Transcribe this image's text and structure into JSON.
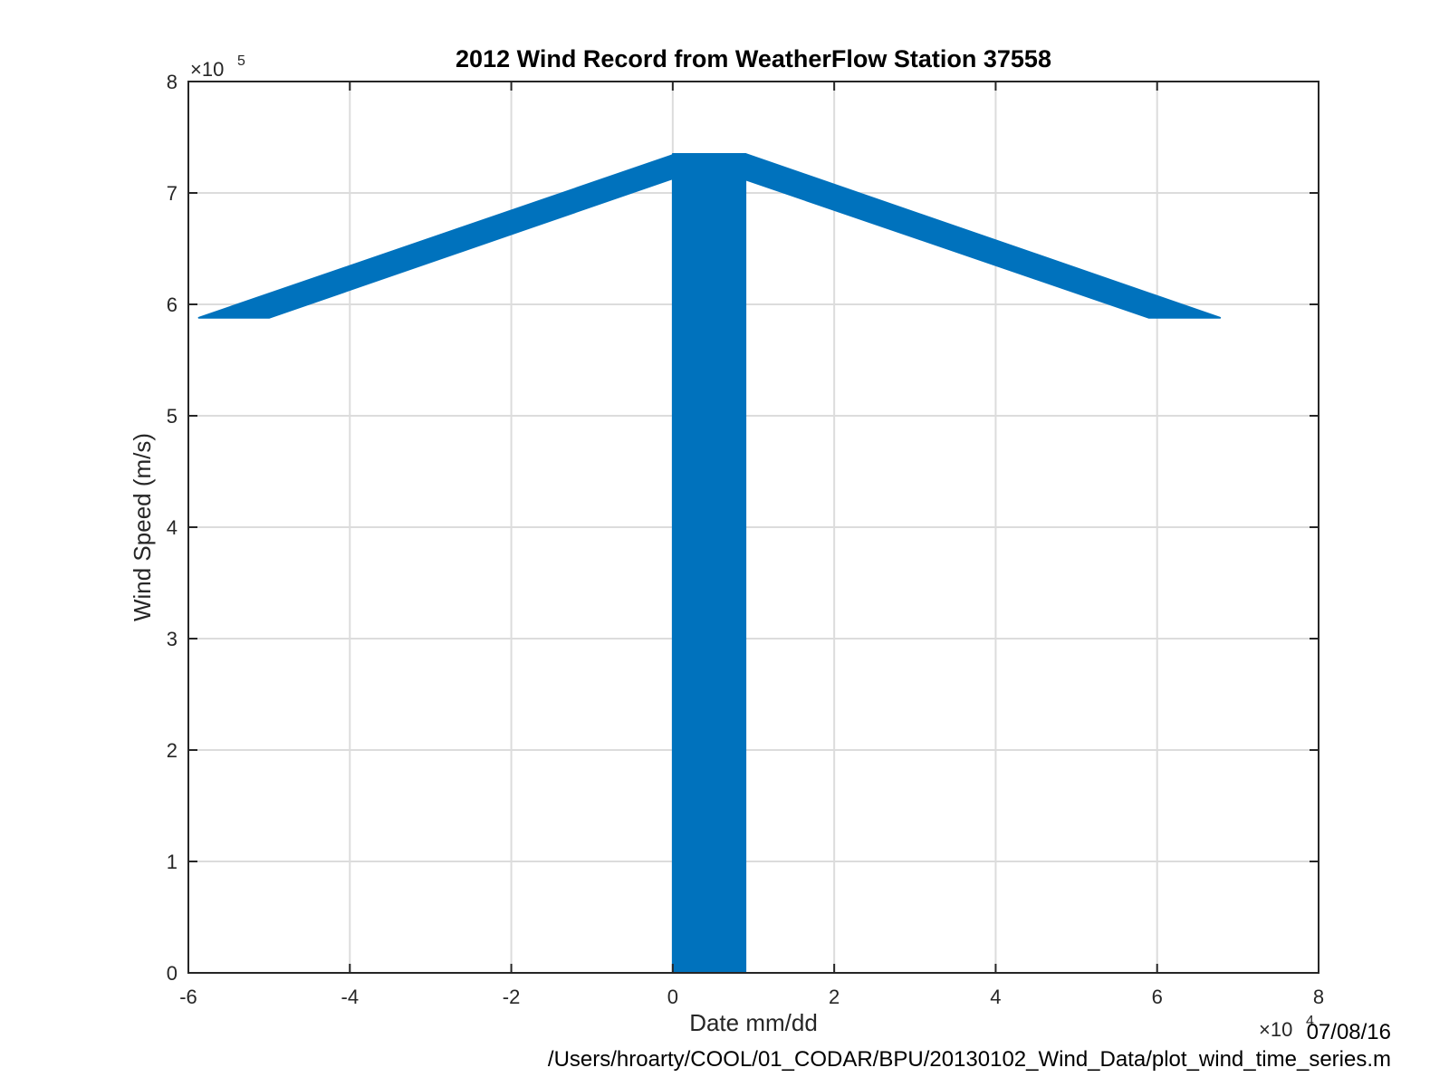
{
  "chart_data": {
    "type": "area",
    "title": "2012 Wind Record from WeatherFlow Station 37558",
    "xlabel": "Date mm/dd",
    "ylabel": "Wind Speed (m/s)",
    "xlim": [
      -60000,
      80000
    ],
    "ylim": [
      0,
      800000
    ],
    "x_ticks": [
      -60000,
      -40000,
      -20000,
      0,
      20000,
      40000,
      60000,
      80000
    ],
    "x_tick_labels": [
      "-6",
      "-4",
      "-2",
      "0",
      "2",
      "4",
      "6",
      "8"
    ],
    "y_ticks": [
      0,
      100000,
      200000,
      300000,
      400000,
      500000,
      600000,
      700000,
      800000
    ],
    "y_tick_labels": [
      "0",
      "1",
      "2",
      "3",
      "4",
      "5",
      "6",
      "7",
      "8"
    ],
    "x_exponent": "×10",
    "x_exponent_power": "4",
    "y_exponent": "×10",
    "y_exponent_power": "5",
    "grid": true,
    "color": "#0072bd",
    "series": [
      {
        "x": [
          -58700,
          -50000,
          0,
          900,
          9000,
          59000,
          67800,
          59000,
          9000,
          9000,
          0,
          -50000,
          -58700
        ],
        "y": [
          588000,
          588000,
          734000,
          735000,
          735000,
          588000,
          588000,
          588000,
          712000,
          0,
          0,
          712000,
          588000
        ]
      }
    ],
    "fill_shapes": [
      {
        "x": [
          -58700,
          -50000,
          0,
          0
        ],
        "y": [
          588000,
          588000,
          713000,
          734000
        ]
      },
      {
        "x": [
          0,
          9000,
          9000,
          0
        ],
        "y": [
          0,
          0,
          735000,
          735000
        ]
      },
      {
        "x": [
          9000,
          59000,
          67800,
          9000
        ],
        "y": [
          712000,
          588000,
          588000,
          735000
        ]
      }
    ]
  },
  "footer": {
    "date": "07/08/16",
    "path": "/Users/hroarty/COOL/01_CODAR/BPU/20130102_Wind_Data/plot_wind_time_series.m"
  }
}
